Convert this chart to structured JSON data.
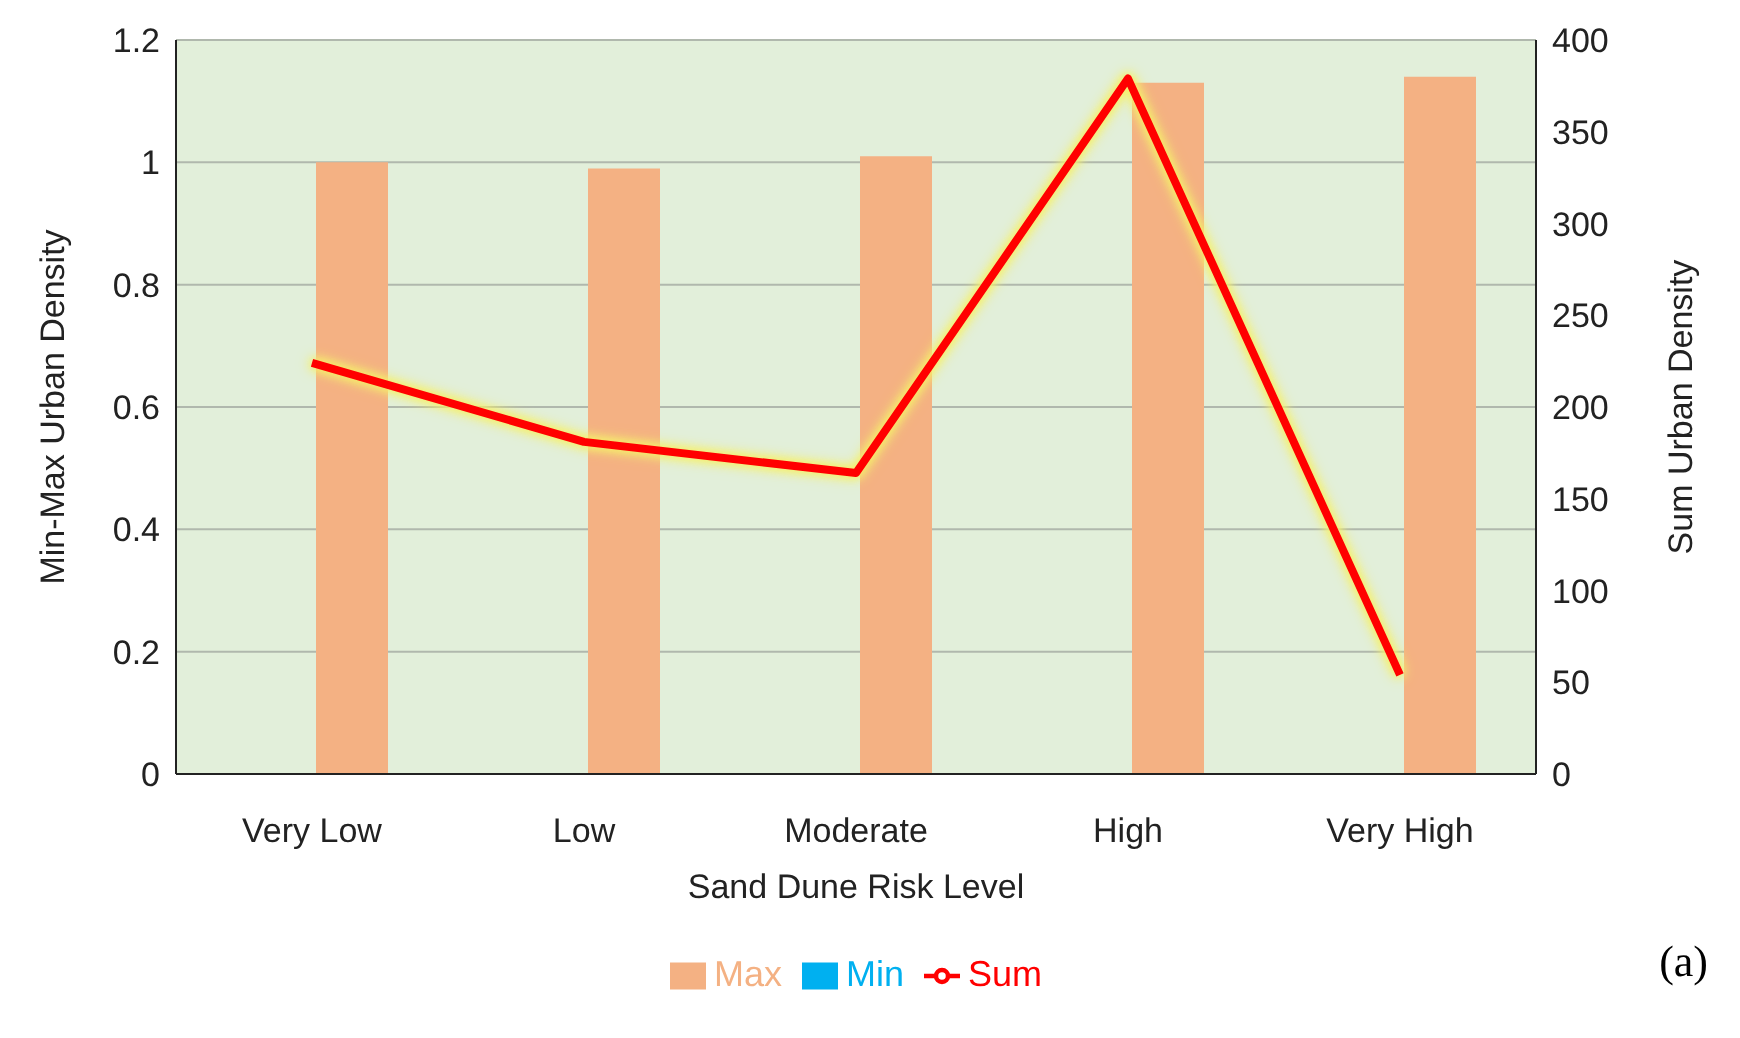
{
  "chart_data": {
    "type": "bar",
    "xlabel": "Sand Dune Risk Level",
    "ylabel": "Min-Max Urban Density",
    "y2label": "Sum Urban Density",
    "categories": [
      "Very Low",
      "Low",
      "Moderate",
      "High",
      "Very High"
    ],
    "series": [
      {
        "name": "Min",
        "color": "#00b0f0",
        "values": [
          0,
          0,
          0,
          0,
          0
        ]
      },
      {
        "name": "Max",
        "color": "#f4b183",
        "values": [
          1.0,
          0.99,
          1.01,
          1.13,
          1.14
        ]
      },
      {
        "name": "Sum",
        "type": "line",
        "axis": "y2",
        "color": "#ff0000",
        "values": [
          224,
          181,
          164,
          379,
          54
        ]
      }
    ],
    "ylim": [
      0,
      1.2
    ],
    "yticks": [
      0,
      {
        "value": 0.2,
        "label": "0.2"
      },
      {
        "value": 0.4,
        "label": "0.4"
      },
      {
        "value": 0.6,
        "label": "0.6"
      },
      {
        "value": 0.8,
        "label": "0.8"
      },
      1,
      {
        "value": 1.2,
        "label": "1.2"
      }
    ],
    "y2lim": [
      0,
      400
    ],
    "y2ticks": [
      0,
      50,
      100,
      150,
      200,
      250,
      300,
      350,
      400
    ],
    "grid": "y",
    "legend": "bottom",
    "marker": "none",
    "line_style": "solid",
    "annotations": [
      "(a)"
    ]
  }
}
